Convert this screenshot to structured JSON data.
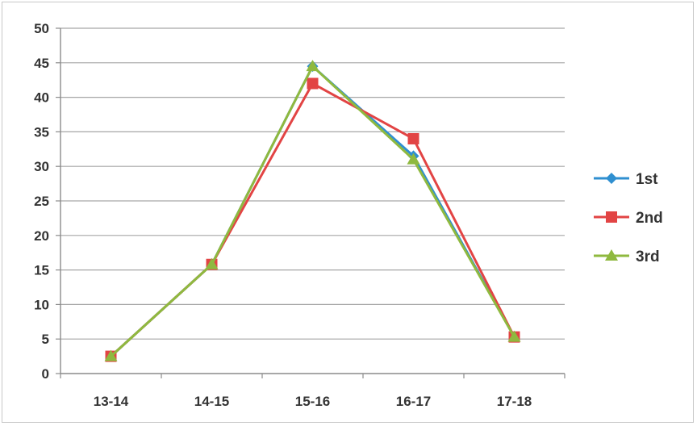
{
  "chart_data": {
    "type": "line",
    "title": "",
    "xlabel": "",
    "ylabel": "",
    "categories": [
      "13-14",
      "14-15",
      "15-16",
      "16-17",
      "17-18"
    ],
    "ylim": [
      0,
      50
    ],
    "yticks": [
      0,
      5,
      10,
      15,
      20,
      25,
      30,
      35,
      40,
      45,
      50
    ],
    "grid": true,
    "legend_position": "right",
    "series": [
      {
        "name": "1st",
        "values": [
          2.5,
          15.8,
          44.5,
          31.5,
          5.3
        ],
        "color": "#2f8fd0",
        "marker": "diamond"
      },
      {
        "name": "2nd",
        "values": [
          2.5,
          15.8,
          42.0,
          34.0,
          5.3
        ],
        "color": "#e24444",
        "marker": "square"
      },
      {
        "name": "3rd",
        "values": [
          2.5,
          15.8,
          44.5,
          31.0,
          5.3
        ],
        "color": "#8fb93f",
        "marker": "triangle"
      }
    ]
  }
}
